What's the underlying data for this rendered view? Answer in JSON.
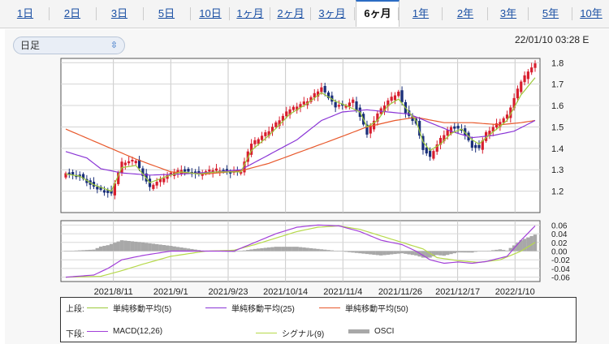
{
  "tabs": [
    "1日",
    "2日",
    "3日",
    "5日",
    "10日",
    "1ヶ月",
    "2ヶ月",
    "3ヶ月",
    "6ヶ月",
    "1年",
    "2年",
    "3年",
    "5年",
    "10年"
  ],
  "active_tab": "6ヶ月",
  "period_select": {
    "value": "日足"
  },
  "timestamp": "22/01/10 03:28 E",
  "colors": {
    "up": "#d81e2e",
    "down": "#1a2f7a",
    "ma5": "#9cc93a",
    "ma25": "#8a35d6",
    "ma50": "#e8582b",
    "macd": "#a23fd9",
    "signal": "#b6d94a",
    "osci": "#a8a8a8"
  },
  "legend": {
    "upper_label": "上段:",
    "lower_label": "下段:",
    "ma5": "単純移動平均(5)",
    "ma25": "単純移動平均(25)",
    "ma50": "単純移動平均(50)",
    "macd": "MACD(12,26)",
    "signal": "シグナル(9)",
    "osci": "OSCI"
  },
  "chart_data": [
    {
      "type": "candlestick",
      "title": "",
      "ylim": [
        1.1,
        1.82
      ],
      "yticks": [
        "1.8",
        "1.7",
        "1.6",
        "1.5",
        "1.4",
        "1.3",
        "1.2"
      ],
      "x_tick_labels": [
        "2021/8/11",
        "2021/9/1",
        "2021/9/23",
        "2021/10/14",
        "2021/11/4",
        "2021/11/26",
        "2021/12/17",
        "2022/1/10"
      ],
      "n_days": 108,
      "close_anchors": [
        [
          0,
          1.285
        ],
        [
          4,
          1.27
        ],
        [
          8,
          1.22
        ],
        [
          13,
          1.19
        ],
        [
          16,
          1.33
        ],
        [
          20,
          1.34
        ],
        [
          24,
          1.22
        ],
        [
          29,
          1.27
        ],
        [
          33,
          1.3
        ],
        [
          38,
          1.28
        ],
        [
          43,
          1.3
        ],
        [
          47,
          1.29
        ],
        [
          50,
          1.29
        ],
        [
          53,
          1.42
        ],
        [
          58,
          1.48
        ],
        [
          64,
          1.58
        ],
        [
          69,
          1.62
        ],
        [
          73,
          1.68
        ],
        [
          77,
          1.6
        ],
        [
          80,
          1.6
        ],
        [
          82,
          1.62
        ],
        [
          84,
          1.55
        ],
        [
          86,
          1.47
        ],
        [
          89,
          1.56
        ],
        [
          92,
          1.62
        ],
        [
          95,
          1.66
        ],
        [
          97,
          1.57
        ],
        [
          100,
          1.52
        ],
        [
          102,
          1.4
        ],
        [
          104,
          1.36
        ],
        [
          107,
          1.44
        ],
        [
          110,
          1.5
        ],
        [
          113,
          1.49
        ],
        [
          116,
          1.41
        ],
        [
          118,
          1.4
        ],
        [
          120,
          1.47
        ],
        [
          123,
          1.51
        ],
        [
          126,
          1.55
        ],
        [
          128,
          1.63
        ],
        [
          130,
          1.71
        ],
        [
          132,
          1.76
        ],
        [
          134,
          1.79
        ]
      ],
      "ma5_anchors": [
        [
          0,
          1.28
        ],
        [
          4,
          1.27
        ],
        [
          8,
          1.23
        ],
        [
          13,
          1.2
        ],
        [
          16,
          1.31
        ],
        [
          20,
          1.32
        ],
        [
          24,
          1.24
        ],
        [
          29,
          1.27
        ],
        [
          33,
          1.29
        ],
        [
          38,
          1.28
        ],
        [
          43,
          1.29
        ],
        [
          47,
          1.29
        ],
        [
          50,
          1.29
        ],
        [
          53,
          1.39
        ],
        [
          58,
          1.46
        ],
        [
          64,
          1.56
        ],
        [
          69,
          1.61
        ],
        [
          73,
          1.66
        ],
        [
          77,
          1.62
        ],
        [
          80,
          1.6
        ],
        [
          84,
          1.57
        ],
        [
          86,
          1.5
        ],
        [
          89,
          1.53
        ],
        [
          92,
          1.6
        ],
        [
          95,
          1.63
        ],
        [
          97,
          1.59
        ],
        [
          100,
          1.53
        ],
        [
          102,
          1.43
        ],
        [
          104,
          1.39
        ],
        [
          107,
          1.42
        ],
        [
          110,
          1.47
        ],
        [
          113,
          1.49
        ],
        [
          116,
          1.44
        ],
        [
          118,
          1.42
        ],
        [
          120,
          1.45
        ],
        [
          123,
          1.49
        ],
        [
          126,
          1.53
        ],
        [
          128,
          1.59
        ],
        [
          130,
          1.65
        ],
        [
          134,
          1.73
        ]
      ],
      "ma25_anchors": [
        [
          0,
          1.385
        ],
        [
          6,
          1.355
        ],
        [
          10,
          1.305
        ],
        [
          16,
          1.285
        ],
        [
          24,
          1.275
        ],
        [
          33,
          1.28
        ],
        [
          43,
          1.29
        ],
        [
          50,
          1.3
        ],
        [
          58,
          1.37
        ],
        [
          66,
          1.44
        ],
        [
          73,
          1.53
        ],
        [
          79,
          1.57
        ],
        [
          86,
          1.58
        ],
        [
          92,
          1.57
        ],
        [
          98,
          1.56
        ],
        [
          104,
          1.52
        ],
        [
          110,
          1.48
        ],
        [
          116,
          1.45
        ],
        [
          122,
          1.46
        ],
        [
          128,
          1.48
        ],
        [
          134,
          1.53
        ]
      ],
      "ma50_anchors": [
        [
          0,
          1.49
        ],
        [
          10,
          1.42
        ],
        [
          20,
          1.35
        ],
        [
          30,
          1.29
        ],
        [
          40,
          1.28
        ],
        [
          50,
          1.295
        ],
        [
          58,
          1.33
        ],
        [
          68,
          1.39
        ],
        [
          78,
          1.45
        ],
        [
          86,
          1.5
        ],
        [
          94,
          1.53
        ],
        [
          100,
          1.545
        ],
        [
          108,
          1.52
        ],
        [
          116,
          1.52
        ],
        [
          124,
          1.51
        ],
        [
          130,
          1.52
        ],
        [
          134,
          1.53
        ]
      ]
    },
    {
      "type": "line",
      "title": "",
      "ylim": [
        -0.07,
        0.07
      ],
      "yticks": [
        "0.06",
        "0.04",
        "0.02",
        "0.00",
        "-0.02",
        "-0.04",
        "-0.06"
      ],
      "macd_anchors": [
        [
          0,
          -0.06
        ],
        [
          8,
          -0.055
        ],
        [
          12,
          -0.04
        ],
        [
          16,
          -0.02
        ],
        [
          22,
          -0.01
        ],
        [
          30,
          0.0
        ],
        [
          40,
          0.0
        ],
        [
          48,
          0.0
        ],
        [
          54,
          0.02
        ],
        [
          60,
          0.04
        ],
        [
          66,
          0.055
        ],
        [
          72,
          0.06
        ],
        [
          78,
          0.058
        ],
        [
          84,
          0.045
        ],
        [
          90,
          0.025
        ],
        [
          96,
          0.015
        ],
        [
          100,
          0.0
        ],
        [
          104,
          -0.02
        ],
        [
          108,
          -0.028
        ],
        [
          112,
          -0.025
        ],
        [
          116,
          -0.028
        ],
        [
          120,
          -0.024
        ],
        [
          126,
          -0.012
        ],
        [
          130,
          0.025
        ],
        [
          134,
          0.058
        ]
      ],
      "signal_anchors": [
        [
          0,
          -0.06
        ],
        [
          10,
          -0.058
        ],
        [
          16,
          -0.045
        ],
        [
          22,
          -0.03
        ],
        [
          30,
          -0.012
        ],
        [
          40,
          0.0
        ],
        [
          48,
          0.002
        ],
        [
          54,
          0.015
        ],
        [
          60,
          0.03
        ],
        [
          66,
          0.045
        ],
        [
          72,
          0.055
        ],
        [
          78,
          0.058
        ],
        [
          84,
          0.05
        ],
        [
          90,
          0.035
        ],
        [
          96,
          0.02
        ],
        [
          102,
          0.005
        ],
        [
          106,
          -0.015
        ],
        [
          112,
          -0.022
        ],
        [
          118,
          -0.026
        ],
        [
          124,
          -0.02
        ],
        [
          130,
          0.0
        ],
        [
          134,
          0.02
        ]
      ]
    }
  ]
}
